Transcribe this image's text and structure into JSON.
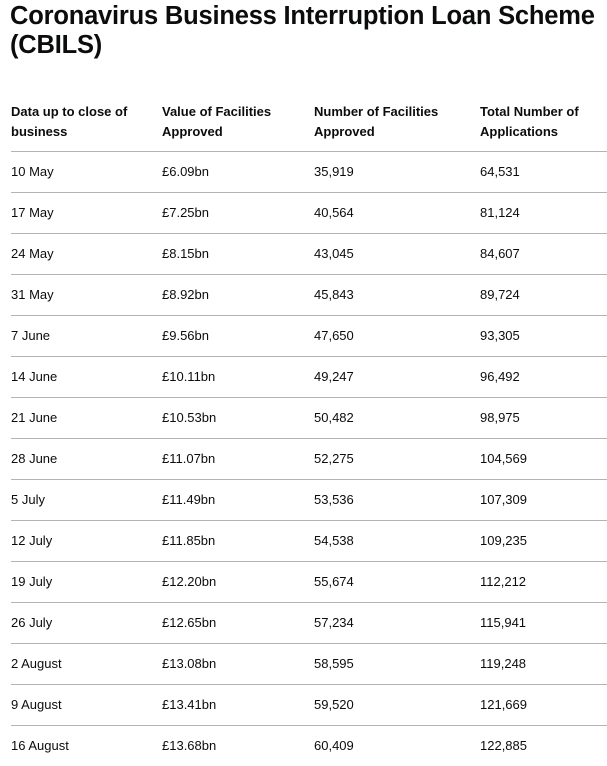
{
  "page": {
    "title": "Coronavirus Business Interruption Loan Scheme (CBILS)"
  },
  "table": {
    "headers": [
      "Data up to close of business",
      "Value of Facilities Approved",
      "Number of Facilities Approved",
      "Total Number of Applications"
    ],
    "rows": [
      [
        "10 May",
        "£6.09bn",
        "35,919",
        "64,531"
      ],
      [
        "17 May",
        "£7.25bn",
        "40,564",
        "81,124"
      ],
      [
        "24 May",
        "£8.15bn",
        "43,045",
        "84,607"
      ],
      [
        "31 May",
        "£8.92bn",
        "45,843",
        "89,724"
      ],
      [
        "7 June",
        "£9.56bn",
        "47,650",
        "93,305"
      ],
      [
        "14 June",
        "£10.11bn",
        "49,247",
        "96,492"
      ],
      [
        "21 June",
        "£10.53bn",
        "50,482",
        "98,975"
      ],
      [
        "28 June",
        "£11.07bn",
        "52,275",
        "104,569"
      ],
      [
        "5 July",
        "£11.49bn",
        "53,536",
        "107,309"
      ],
      [
        "12 July",
        "£11.85bn",
        "54,538",
        "109,235"
      ],
      [
        "19 July",
        "£12.20bn",
        "55,674",
        "112,212"
      ],
      [
        "26 July",
        "£12.65bn",
        "57,234",
        "115,941"
      ],
      [
        "2 August",
        "£13.08bn",
        "58,595",
        "119,248"
      ],
      [
        "9 August",
        "£13.41bn",
        "59,520",
        "121,669"
      ],
      [
        "16 August",
        "£13.68bn",
        "60,409",
        "122,885"
      ]
    ]
  }
}
